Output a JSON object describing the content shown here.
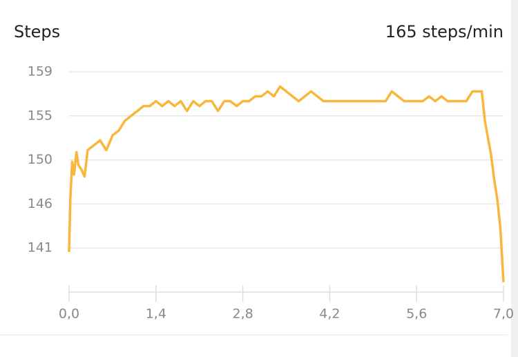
{
  "chart_data": {
    "type": "line",
    "title": "Steps",
    "subtitle": "165 steps/min",
    "x": [
      0,
      0.02,
      0.05,
      0.08,
      0.12,
      0.15,
      0.2,
      0.25,
      0.3,
      0.4,
      0.5,
      0.6,
      0.7,
      0.8,
      0.9,
      1.0,
      1.1,
      1.2,
      1.3,
      1.4,
      1.5,
      1.6,
      1.7,
      1.8,
      1.9,
      2.0,
      2.1,
      2.2,
      2.3,
      2.4,
      2.5,
      2.6,
      2.7,
      2.8,
      2.9,
      3.0,
      3.1,
      3.2,
      3.3,
      3.4,
      3.5,
      3.6,
      3.7,
      3.8,
      3.9,
      4.0,
      4.1,
      4.2,
      4.3,
      4.4,
      4.5,
      4.6,
      4.7,
      4.8,
      4.9,
      5.0,
      5.1,
      5.2,
      5.3,
      5.4,
      5.5,
      5.6,
      5.7,
      5.8,
      5.9,
      6.0,
      6.1,
      6.2,
      6.3,
      6.4,
      6.5,
      6.6,
      6.65,
      6.7,
      6.8,
      6.85,
      6.9,
      6.95,
      7.0
    ],
    "series": [
      {
        "name": "Steps",
        "color": "#f8b73b",
        "values": [
          140.6,
          146,
          149.8,
          148.5,
          150.8,
          149.5,
          149,
          148.3,
          151,
          151.5,
          152,
          151,
          152.5,
          153,
          154,
          154.5,
          155,
          155.5,
          155.5,
          156,
          155.5,
          156,
          155.5,
          156,
          155,
          156,
          155.5,
          156,
          156,
          155,
          156,
          156,
          155.5,
          156,
          156,
          156.5,
          156.5,
          157,
          156.5,
          157.5,
          157,
          156.5,
          156,
          156.5,
          157,
          156.5,
          156,
          156,
          156,
          156,
          156,
          156,
          156,
          156,
          156,
          156,
          156,
          157,
          156.5,
          156,
          156,
          156,
          156,
          156.5,
          156,
          156.5,
          156,
          156,
          156,
          156,
          157,
          157,
          157,
          154,
          150.5,
          148,
          146,
          143,
          137.5
        ]
      }
    ],
    "xlim": [
      0,
      7
    ],
    "xticks": [
      {
        "value": 0,
        "label": "0,0"
      },
      {
        "value": 1.4,
        "label": "1,4"
      },
      {
        "value": 2.8,
        "label": "2,8"
      },
      {
        "value": 4.2,
        "label": "4,2"
      },
      {
        "value": 5.6,
        "label": "5,6"
      },
      {
        "value": 7.0,
        "label": "7,0"
      }
    ],
    "ylim": [
      136.5,
      159.6
    ],
    "yticks": [
      141,
      {
        "value": 145.5,
        "label": "146"
      },
      150,
      {
        "value": 154.5,
        "label": "155"
      },
      159
    ],
    "grid": true
  }
}
